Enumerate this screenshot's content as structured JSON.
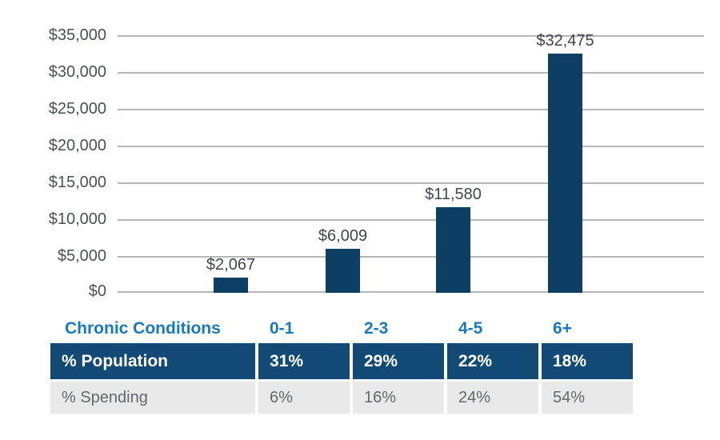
{
  "chart_data": {
    "type": "bar",
    "title": "",
    "xlabel": "Chronic Conditions",
    "ylabel": "",
    "categories": [
      "0-1",
      "2-3",
      "4-5",
      "6+"
    ],
    "values": [
      2067,
      6009,
      11580,
      32475
    ],
    "bar_labels": [
      "$2,067",
      "$6,009",
      "$11,580",
      "$32,475"
    ],
    "y_ticks": [
      "$35,000",
      "$30,000",
      "$25,000",
      "$20,000",
      "$15,000",
      "$10,000",
      "$5,000",
      "$0"
    ],
    "ylim": [
      0,
      35000
    ],
    "grid": true,
    "legend": "none",
    "bar_color": "#0d3f64"
  },
  "table": {
    "header": {
      "label": "Chronic Conditions",
      "columns": [
        "0-1",
        "2-3",
        "4-5",
        "6+"
      ]
    },
    "rows": [
      {
        "label": "% Population",
        "values": [
          "31%",
          "29%",
          "22%",
          "18%"
        ],
        "style": "navy"
      },
      {
        "label": "% Spending",
        "values": [
          "6%",
          "16%",
          "24%",
          "54%"
        ],
        "style": "gray"
      }
    ]
  },
  "colors": {
    "bar": "#0d3f64",
    "table_header_row": "#114a74",
    "table_alt_row": "#e9e9e9",
    "blue_text": "#1779c1",
    "gridline": "#b7b7b7",
    "axis_text": "#4b505a",
    "value_text": "#42464d",
    "gray_text": "#64676c"
  }
}
